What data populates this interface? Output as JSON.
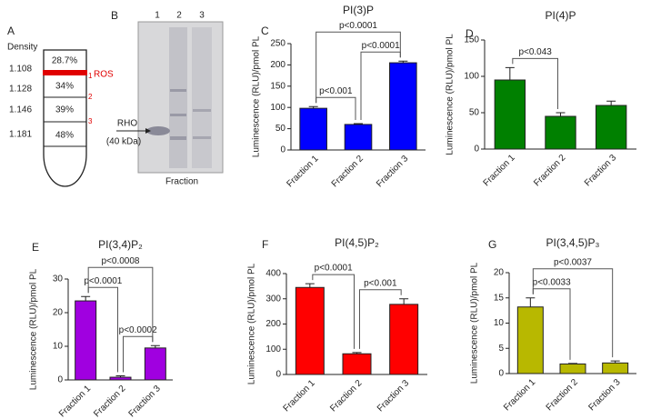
{
  "panel_a": {
    "letter": "A",
    "header": "Density",
    "densities": [
      "1.108",
      "1.128",
      "1.146",
      "1.181"
    ],
    "fractions": [
      "28.7%",
      "34%",
      "39%",
      "48%"
    ],
    "fraction_numbers": [
      "1",
      "2",
      "3"
    ],
    "band_label": "ROS"
  },
  "panel_b": {
    "letter": "B",
    "lanes": [
      "1",
      "2",
      "3"
    ],
    "marker": "RHO",
    "marker_size": "(40 kDa)",
    "xlabel": "Fraction"
  },
  "chart_data": [
    {
      "type": "bar",
      "letter": "C",
      "title": "PI(3)P",
      "ylabel": "Luminescence (RLU)/pmol PL",
      "categories": [
        "Fraction 1",
        "Fraction 2",
        "Fraction 3"
      ],
      "values": [
        98,
        60,
        205
      ],
      "errors": [
        4,
        2,
        4
      ],
      "color": "#0000ff",
      "ylim": [
        0,
        250
      ],
      "yticks": [
        0,
        50,
        100,
        150,
        200,
        250
      ],
      "annotations": [
        {
          "text": "p<0.001",
          "pair": [
            "Fraction 1",
            "Fraction 2"
          ]
        },
        {
          "text": "p<0.0001",
          "pair": [
            "Fraction 2",
            "Fraction 3"
          ]
        },
        {
          "text": "p<0.0001",
          "pair": [
            "Fraction 1",
            "Fraction 3"
          ]
        }
      ]
    },
    {
      "type": "bar",
      "letter": "D",
      "title": "PI(4)P",
      "ylabel": "Luminescence (RLU)/pmol PL",
      "categories": [
        "Fraction 1",
        "Fraction 2",
        "Fraction 3"
      ],
      "values": [
        95,
        45,
        60
      ],
      "errors": [
        17,
        5,
        6
      ],
      "color": "#008000",
      "ylim": [
        0,
        150
      ],
      "yticks": [
        0,
        50,
        100,
        150
      ],
      "annotations": [
        {
          "text": "p<0.043",
          "pair": [
            "Fraction 1",
            "Fraction 2"
          ]
        }
      ]
    },
    {
      "type": "bar",
      "letter": "E",
      "title": "PI(3,4)P₂",
      "ylabel": "Luminescence (RLU)/pmol PL",
      "categories": [
        "Fraction 1",
        "Fraction 2",
        "Fraction 3"
      ],
      "values": [
        23.5,
        0.8,
        9.5
      ],
      "errors": [
        1.3,
        0.4,
        0.7
      ],
      "color": "#a000e0",
      "ylim": [
        0,
        30
      ],
      "yticks": [
        0,
        10,
        20,
        30
      ],
      "annotations": [
        {
          "text": "p<0.0002",
          "pair": [
            "Fraction 2",
            "Fraction 3"
          ]
        },
        {
          "text": "p<0.0001",
          "pair": [
            "Fraction 1",
            "Fraction 2"
          ]
        },
        {
          "text": "p<0.0008",
          "pair": [
            "Fraction 1",
            "Fraction 3"
          ]
        }
      ]
    },
    {
      "type": "bar",
      "letter": "F",
      "title": "PI(4,5)P₂",
      "ylabel": "Luminescence (RLU)/pmol PL",
      "categories": [
        "Fraction 1",
        "Fraction 2",
        "Fraction 3"
      ],
      "values": [
        345,
        82,
        278
      ],
      "errors": [
        15,
        5,
        22
      ],
      "color": "#ff0000",
      "ylim": [
        0,
        400
      ],
      "yticks": [
        0,
        100,
        200,
        300,
        400
      ],
      "annotations": [
        {
          "text": "p<0.0001",
          "pair": [
            "Fraction 1",
            "Fraction 2"
          ]
        },
        {
          "text": "p<0.001",
          "pair": [
            "Fraction 2",
            "Fraction 3"
          ]
        }
      ]
    },
    {
      "type": "bar",
      "letter": "G",
      "title": "PI(3,4,5)P₃",
      "ylabel": "Luminescence (RLU)/pmol PL",
      "categories": [
        "Fraction 1",
        "Fraction 2",
        "Fraction 3"
      ],
      "values": [
        13.2,
        1.9,
        2.1
      ],
      "errors": [
        1.8,
        0.1,
        0.4
      ],
      "color": "#b8b800",
      "ylim": [
        0,
        20
      ],
      "yticks": [
        0,
        5,
        10,
        15,
        20
      ],
      "annotations": [
        {
          "text": "p<0.0033",
          "pair": [
            "Fraction 1",
            "Fraction 2"
          ]
        },
        {
          "text": "p<0.0037",
          "pair": [
            "Fraction 1",
            "Fraction 3"
          ]
        }
      ]
    }
  ]
}
